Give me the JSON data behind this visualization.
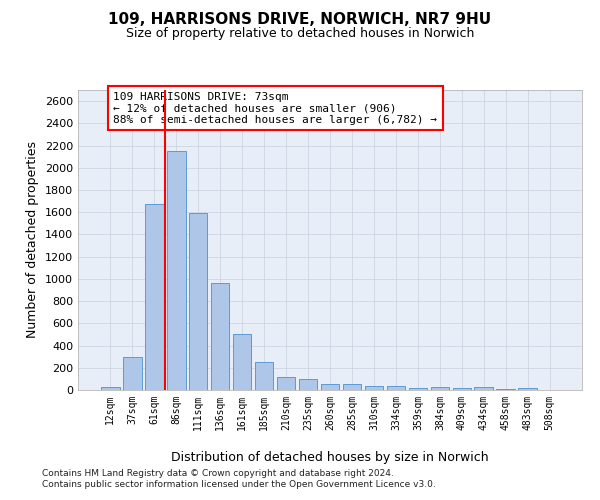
{
  "title_line1": "109, HARRISONS DRIVE, NORWICH, NR7 9HU",
  "title_line2": "Size of property relative to detached houses in Norwich",
  "xlabel": "Distribution of detached houses by size in Norwich",
  "ylabel": "Number of detached properties",
  "categories": [
    "12sqm",
    "37sqm",
    "61sqm",
    "86sqm",
    "111sqm",
    "136sqm",
    "161sqm",
    "185sqm",
    "210sqm",
    "235sqm",
    "260sqm",
    "285sqm",
    "310sqm",
    "334sqm",
    "359sqm",
    "384sqm",
    "409sqm",
    "434sqm",
    "458sqm",
    "483sqm",
    "508sqm"
  ],
  "values": [
    25,
    300,
    1670,
    2150,
    1595,
    960,
    505,
    250,
    120,
    100,
    50,
    50,
    35,
    35,
    20,
    30,
    20,
    30,
    5,
    20,
    0
  ],
  "bar_color": "#aec6e8",
  "bar_edge_color": "#5b9bd5",
  "vline_color": "red",
  "annotation_text": "109 HARRISONS DRIVE: 73sqm\n← 12% of detached houses are smaller (906)\n88% of semi-detached houses are larger (6,782) →",
  "annotation_box_color": "white",
  "annotation_box_edge_color": "red",
  "ylim": [
    0,
    2700
  ],
  "yticks": [
    0,
    200,
    400,
    600,
    800,
    1000,
    1200,
    1400,
    1600,
    1800,
    2000,
    2200,
    2400,
    2600
  ],
  "footer_line1": "Contains HM Land Registry data © Crown copyright and database right 2024.",
  "footer_line2": "Contains public sector information licensed under the Open Government Licence v3.0.",
  "background_color": "#e8eef8",
  "grid_color": "#c8d0e0"
}
